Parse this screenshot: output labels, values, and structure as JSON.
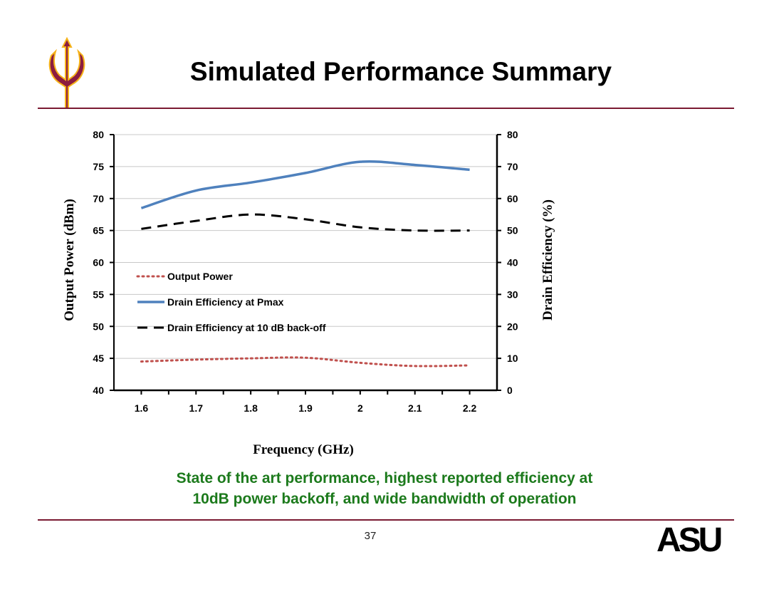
{
  "slide": {
    "title": "Simulated Performance Summary",
    "summary_line1": "State of the art performance, highest reported efficiency at",
    "summary_line2": "10dB power backoff, and wide bandwidth of operation",
    "page_number": "37",
    "logo_left": "pitchfork-icon",
    "logo_right": "ASU",
    "colors": {
      "rule": "#7a1a32",
      "summary": "#1c7a1c"
    }
  },
  "chart_data": {
    "type": "line",
    "x": [
      1.6,
      1.7,
      1.8,
      1.9,
      2.0,
      2.1,
      2.2
    ],
    "xticks": [
      "1.6",
      "1.7",
      "1.8",
      "1.9",
      "2",
      "2.1",
      "2.2"
    ],
    "xlabel": "Frequency (GHz)",
    "ylabel_left": "Output Power (dBm)",
    "ylabel_right": "Drain Efficiency (%)",
    "ylim_left": [
      40,
      80
    ],
    "ylim_right": [
      0,
      80
    ],
    "yticks_left": [
      40,
      45,
      50,
      55,
      60,
      65,
      70,
      75,
      80
    ],
    "yticks_right": [
      0,
      10,
      20,
      30,
      40,
      50,
      60,
      70,
      80
    ],
    "grid": true,
    "legend_position": "center-left",
    "series": [
      {
        "name": "Output Power",
        "axis": "left",
        "style": "dotted",
        "color": "#c0504d",
        "values": [
          44.5,
          44.8,
          45.0,
          45.1,
          44.3,
          43.8,
          43.9
        ]
      },
      {
        "name": "Drain Efficiency at Pmax",
        "axis": "right",
        "style": "solid",
        "color": "#4f81bd",
        "values": [
          57,
          62.5,
          65,
          68,
          71.5,
          70.5,
          69
        ]
      },
      {
        "name": "Drain Efficiency at 10 dB back-off",
        "axis": "right",
        "style": "dashed",
        "color": "#000000",
        "values": [
          50.5,
          53,
          55,
          53.5,
          51,
          50,
          50
        ]
      }
    ]
  }
}
